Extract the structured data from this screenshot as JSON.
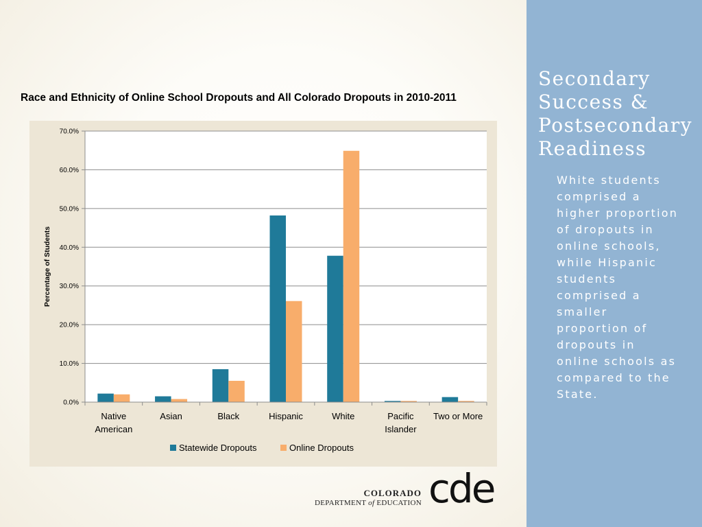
{
  "side": {
    "title": "Secondary Success & Postsecondary Readiness",
    "body": "White students comprised a higher proportion of dropouts in online schools, while Hispanic students comprised a smaller proportion of dropouts in online schools as compared to the State."
  },
  "logo": {
    "line1": "COLORADO",
    "line2_pre": "DEPARTMENT ",
    "line2_of": "of",
    "line2_post": " EDUCATION",
    "mark": "cde"
  },
  "chart_data": {
    "type": "bar",
    "title": "Race and Ethnicity of Online School Dropouts and All Colorado Dropouts in 2010-2011",
    "xlabel": "",
    "ylabel": "Percentage of Students",
    "ylim": [
      0,
      70
    ],
    "ytick_labels": [
      "0.0%",
      "10.0%",
      "20.0%",
      "30.0%",
      "40.0%",
      "50.0%",
      "60.0%",
      "70.0%"
    ],
    "categories": [
      [
        "Native",
        "American"
      ],
      [
        "Asian"
      ],
      [
        "Black"
      ],
      [
        "Hispanic"
      ],
      [
        "White"
      ],
      [
        "Pacific",
        "Islander"
      ],
      [
        "Two or More"
      ]
    ],
    "series": [
      {
        "name": "Statewide Dropouts",
        "color": "#1f7a99",
        "values": [
          2.2,
          1.5,
          8.5,
          48.2,
          37.8,
          0.3,
          1.3
        ]
      },
      {
        "name": "Online Dropouts",
        "color": "#f8ad6b",
        "values": [
          2.0,
          0.8,
          5.5,
          26.1,
          64.9,
          0.3,
          0.3
        ]
      }
    ],
    "grid": true,
    "legend_position": "bottom",
    "colors": {
      "grid": "#8c8c8c",
      "plot_bg": "#ffffff",
      "frame_bg": "#ede6d6"
    }
  }
}
